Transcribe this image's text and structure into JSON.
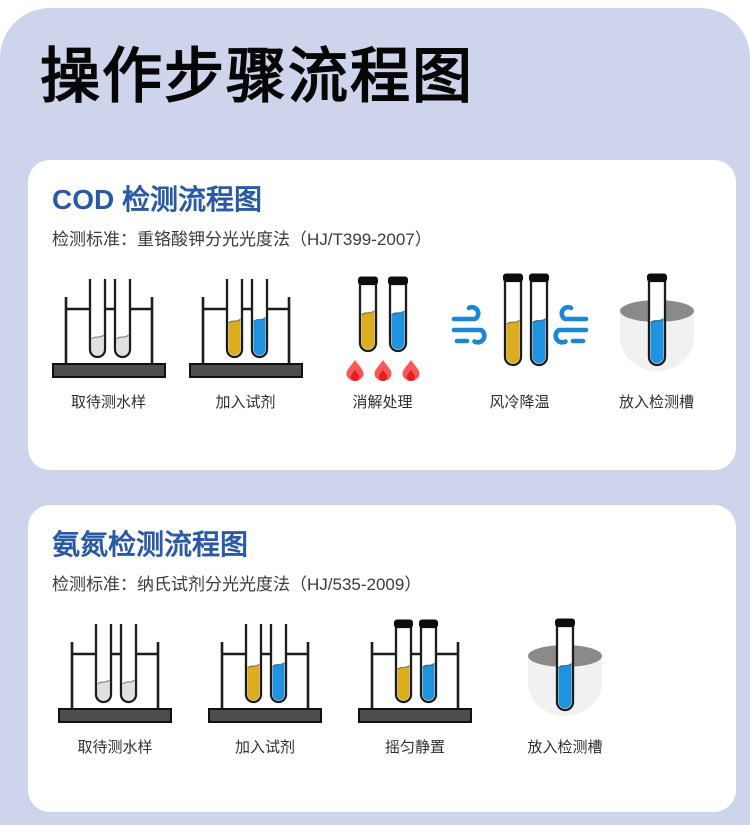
{
  "page": {
    "title": "操作步骤流程图",
    "colors": {
      "page_bg": "#ffffff",
      "panel_bg": "#cdd4ec",
      "card_bg": "#ffffff",
      "title_color": "#060606",
      "accent_blue": "#2a5aa5",
      "standard_text": "#3b3b3b",
      "label_text": "#2e2e2e",
      "outline": "#1c1c1c",
      "rack_dark": "#4d4d4d",
      "sample_gray": "#e0e0e0",
      "liquid_yellow": "#dcae1d",
      "liquid_blue": "#1f93e0",
      "flame_outer": "#fb5757",
      "flame_inner": "#e31e1e",
      "wind_blue": "#1d86d4",
      "slot_body_gray": "#f1f1f1",
      "slot_rim_gray": "#8a8a8a"
    }
  },
  "sections": [
    {
      "heading": "COD 检测流程图",
      "standard": "检测标准：重铬酸钾分光光度法（HJ/T399-2007）",
      "steps": [
        {
          "label": "取待测水样",
          "icon": "rack-open-tubes-sample-icon"
        },
        {
          "label": "加入试剂",
          "icon": "rack-open-tubes-reagent-icon"
        },
        {
          "label": "消解处理",
          "icon": "capped-tubes-flame-icon"
        },
        {
          "label": "风冷降温",
          "icon": "capped-tubes-wind-icon"
        },
        {
          "label": "放入检测槽",
          "icon": "tube-in-detection-slot-icon"
        }
      ]
    },
    {
      "heading": "氨氮检测流程图",
      "standard": "检测标准：纳氏试剂分光光度法（HJ/535-2009）",
      "steps": [
        {
          "label": "取待测水样",
          "icon": "rack-open-tubes-sample-icon"
        },
        {
          "label": "加入试剂",
          "icon": "rack-open-tubes-reagent-icon"
        },
        {
          "label": "摇匀静置",
          "icon": "rack-capped-tubes-icon"
        },
        {
          "label": "放入检测槽",
          "icon": "tube-in-detection-slot-icon"
        }
      ]
    }
  ]
}
